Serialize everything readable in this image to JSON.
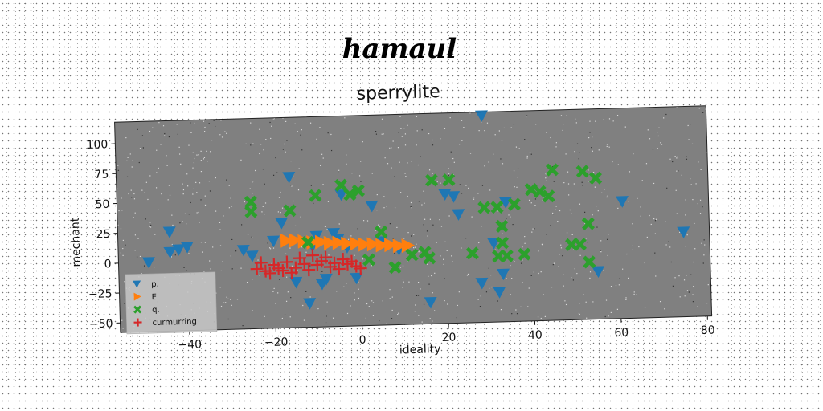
{
  "chart_data": {
    "type": "scatter",
    "suptitle": "hamaul",
    "title": "sperrylite",
    "xlabel": "ideality",
    "ylabel": "mechant",
    "xlim": [
      -56,
      81
    ],
    "ylim": [
      -58,
      118
    ],
    "xticks": [
      -40,
      -20,
      0,
      20,
      40,
      60,
      80
    ],
    "yticks": [
      -50,
      -25,
      0,
      25,
      50,
      75,
      100
    ],
    "grid": false,
    "legend_position": "lower-left",
    "background_color": "#808080",
    "series": [
      {
        "name": "p.",
        "marker": "triangle-down",
        "color": "#1f77b4",
        "points": [
          [
            -49,
            0
          ],
          [
            -44,
            25
          ],
          [
            -44,
            8
          ],
          [
            -42,
            10
          ],
          [
            -40,
            12
          ],
          [
            -27,
            8
          ],
          [
            -25,
            3
          ],
          [
            -20,
            15
          ],
          [
            -18,
            30
          ],
          [
            -16,
            68
          ],
          [
            -15,
            -20
          ],
          [
            -12,
            -38
          ],
          [
            -11,
            10
          ],
          [
            -10,
            18
          ],
          [
            -9,
            -22
          ],
          [
            -8,
            -18
          ],
          [
            -6,
            20
          ],
          [
            -5,
            15
          ],
          [
            -4,
            52
          ],
          [
            -3,
            8
          ],
          [
            -1,
            -18
          ],
          [
            3,
            42
          ],
          [
            5,
            12
          ],
          [
            9,
            5
          ],
          [
            16,
            -40
          ],
          [
            20,
            50
          ],
          [
            22,
            48
          ],
          [
            23,
            33
          ],
          [
            28,
            -25
          ],
          [
            29,
            115
          ],
          [
            31,
            8
          ],
          [
            32,
            -33
          ],
          [
            33,
            -18
          ],
          [
            34,
            42
          ],
          [
            55,
            -18
          ],
          [
            61,
            40
          ],
          [
            75,
            13
          ]
        ]
      },
      {
        "name": "E",
        "marker": "triangle-right",
        "color": "#ff7f0e",
        "points": [
          [
            -17,
            15
          ],
          [
            -15,
            15
          ],
          [
            -13,
            14
          ],
          [
            -11,
            13
          ],
          [
            -9,
            13
          ],
          [
            -7,
            12
          ],
          [
            -5,
            12
          ],
          [
            -3,
            11
          ],
          [
            -1,
            11
          ],
          [
            1,
            10
          ],
          [
            3,
            10
          ],
          [
            5,
            9
          ],
          [
            7,
            9
          ],
          [
            9,
            8
          ],
          [
            11,
            8
          ]
        ]
      },
      {
        "name": "q.",
        "marker": "x-filled",
        "color": "#2ca02c",
        "points": [
          [
            -25,
            48
          ],
          [
            -25,
            40
          ],
          [
            -16,
            40
          ],
          [
            -12,
            13
          ],
          [
            -10,
            52
          ],
          [
            -4,
            60
          ],
          [
            -2,
            52
          ],
          [
            0,
            55
          ],
          [
            2,
            -3
          ],
          [
            5,
            20
          ],
          [
            8,
            -10
          ],
          [
            12,
            0
          ],
          [
            15,
            2
          ],
          [
            16,
            -3
          ],
          [
            17,
            62
          ],
          [
            21,
            62
          ],
          [
            26,
            0
          ],
          [
            29,
            38
          ],
          [
            32,
            38
          ],
          [
            32,
            -3
          ],
          [
            33,
            22
          ],
          [
            33,
            8
          ],
          [
            34,
            -3
          ],
          [
            36,
            40
          ],
          [
            38,
            -2
          ],
          [
            40,
            52
          ],
          [
            42,
            50
          ],
          [
            44,
            46
          ],
          [
            45,
            68
          ],
          [
            49,
            5
          ],
          [
            51,
            5
          ],
          [
            52,
            66
          ],
          [
            53,
            -10
          ],
          [
            53,
            22
          ],
          [
            55,
            60
          ]
        ]
      },
      {
        "name": "curmurring",
        "marker": "plus",
        "color": "#d62728",
        "points": [
          [
            -24,
            -8
          ],
          [
            -23,
            -3
          ],
          [
            -22,
            -10
          ],
          [
            -21,
            -12
          ],
          [
            -20,
            -5
          ],
          [
            -19,
            -8
          ],
          [
            -18,
            -10
          ],
          [
            -17,
            -3
          ],
          [
            -16,
            -12
          ],
          [
            -15,
            -8
          ],
          [
            -14,
            0
          ],
          [
            -13,
            -5
          ],
          [
            -12,
            -10
          ],
          [
            -11,
            2
          ],
          [
            -10,
            -6
          ],
          [
            -9,
            -3
          ],
          [
            -8,
            0
          ],
          [
            -7,
            -8
          ],
          [
            -6,
            -5
          ],
          [
            -5,
            -10
          ],
          [
            -4,
            -2
          ],
          [
            -3,
            -6
          ],
          [
            -2,
            -4
          ],
          [
            -1,
            -8
          ],
          [
            0,
            -10
          ]
        ]
      }
    ]
  }
}
